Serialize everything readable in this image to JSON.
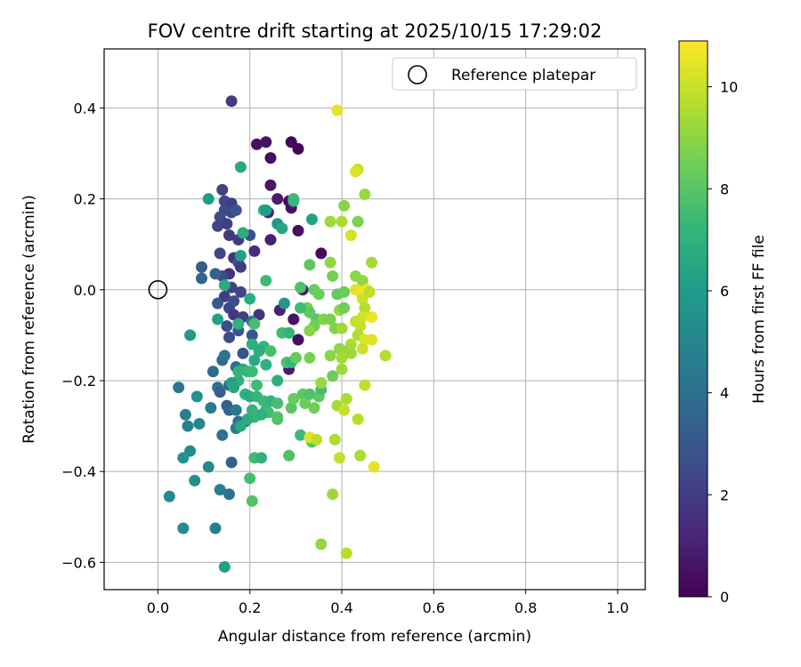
{
  "chart_data": {
    "type": "scatter",
    "title": "FOV centre drift starting at 2025/10/15 17:29:02",
    "xlabel": "Angular distance from reference (arcmin)",
    "ylabel": "Rotation from reference (arcmin)",
    "xlim": [
      -0.117,
      1.06
    ],
    "ylim": [
      -0.66,
      0.53
    ],
    "xticks": [
      0.0,
      0.2,
      0.4,
      0.6,
      0.8,
      1.0
    ],
    "xtick_labels": [
      "0.0",
      "0.2",
      "0.4",
      "0.6",
      "0.8",
      "1.0"
    ],
    "yticks": [
      -0.6,
      -0.4,
      -0.2,
      0.0,
      0.2,
      0.4
    ],
    "ytick_labels": [
      "−0.6",
      "−0.4",
      "−0.2",
      "0.0",
      "0.2",
      "0.4"
    ],
    "grid": true,
    "legend": {
      "position": "top-right",
      "label": "Reference platepar"
    },
    "reference_point": {
      "x": 0.0,
      "y": 0.0
    },
    "colorbar": {
      "label": "Hours from first FF file",
      "range": [
        0,
        10.9
      ],
      "ticks": [
        0,
        2,
        4,
        6,
        8,
        10
      ],
      "tick_labels": [
        "0",
        "2",
        "4",
        "6",
        "8",
        "10"
      ],
      "colormap": "viridis",
      "stops": [
        "#440154",
        "#482878",
        "#3e4989",
        "#31688e",
        "#26828e",
        "#1f9e89",
        "#35b779",
        "#6ece58",
        "#b5de2b",
        "#fde725"
      ]
    },
    "points": [
      {
        "x": 0.29,
        "y": 0.325,
        "h": 0.2
      },
      {
        "x": 0.305,
        "y": 0.31,
        "h": 0.1
      },
      {
        "x": 0.215,
        "y": 0.32,
        "h": 0.5
      },
      {
        "x": 0.235,
        "y": 0.325,
        "h": 0.6
      },
      {
        "x": 0.245,
        "y": 0.29,
        "h": 0.4
      },
      {
        "x": 0.245,
        "y": 0.23,
        "h": 0.7
      },
      {
        "x": 0.26,
        "y": 0.2,
        "h": 0.9
      },
      {
        "x": 0.285,
        "y": 0.195,
        "h": 0.3
      },
      {
        "x": 0.29,
        "y": 0.18,
        "h": 0.5
      },
      {
        "x": 0.24,
        "y": 0.17,
        "h": 1.2
      },
      {
        "x": 0.305,
        "y": 0.13,
        "h": 0.4
      },
      {
        "x": 0.245,
        "y": 0.11,
        "h": 1.0
      },
      {
        "x": 0.355,
        "y": 0.08,
        "h": 0.3
      },
      {
        "x": 0.21,
        "y": 0.085,
        "h": 1.5
      },
      {
        "x": 0.315,
        "y": 0.0,
        "h": 0.8
      },
      {
        "x": 0.295,
        "y": -0.065,
        "h": 0.6
      },
      {
        "x": 0.305,
        "y": -0.11,
        "h": 0.5
      },
      {
        "x": 0.285,
        "y": -0.175,
        "h": 0.9
      },
      {
        "x": 0.265,
        "y": -0.045,
        "h": 1.1
      },
      {
        "x": 0.22,
        "y": -0.055,
        "h": 1.6
      },
      {
        "x": 0.16,
        "y": 0.415,
        "h": 1.9
      },
      {
        "x": 0.14,
        "y": 0.22,
        "h": 2.2
      },
      {
        "x": 0.145,
        "y": 0.195,
        "h": 2.3
      },
      {
        "x": 0.16,
        "y": 0.19,
        "h": 2.0
      },
      {
        "x": 0.145,
        "y": 0.175,
        "h": 2.5
      },
      {
        "x": 0.16,
        "y": 0.17,
        "h": 2.4
      },
      {
        "x": 0.135,
        "y": 0.16,
        "h": 2.6
      },
      {
        "x": 0.13,
        "y": 0.14,
        "h": 2.3
      },
      {
        "x": 0.15,
        "y": 0.145,
        "h": 2.1
      },
      {
        "x": 0.155,
        "y": 0.12,
        "h": 1.8
      },
      {
        "x": 0.175,
        "y": 0.11,
        "h": 2.0
      },
      {
        "x": 0.2,
        "y": 0.12,
        "h": 2.7
      },
      {
        "x": 0.135,
        "y": 0.08,
        "h": 2.2
      },
      {
        "x": 0.165,
        "y": 0.07,
        "h": 1.7
      },
      {
        "x": 0.175,
        "y": 0.06,
        "h": 2.8
      },
      {
        "x": 0.18,
        "y": 0.05,
        "h": 1.9
      },
      {
        "x": 0.155,
        "y": 0.035,
        "h": 1.6
      },
      {
        "x": 0.14,
        "y": 0.03,
        "h": 2.5
      },
      {
        "x": 0.16,
        "y": 0.005,
        "h": 2.2
      },
      {
        "x": 0.18,
        "y": -0.005,
        "h": 2.3
      },
      {
        "x": 0.145,
        "y": -0.015,
        "h": 2.0
      },
      {
        "x": 0.165,
        "y": -0.025,
        "h": 2.6
      },
      {
        "x": 0.13,
        "y": -0.03,
        "h": 3.1
      },
      {
        "x": 0.155,
        "y": -0.04,
        "h": 2.4
      },
      {
        "x": 0.165,
        "y": -0.055,
        "h": 1.8
      },
      {
        "x": 0.185,
        "y": -0.06,
        "h": 2.1
      },
      {
        "x": 0.15,
        "y": -0.08,
        "h": 2.7
      },
      {
        "x": 0.175,
        "y": -0.09,
        "h": 2.9
      },
      {
        "x": 0.155,
        "y": -0.105,
        "h": 2.5
      },
      {
        "x": 0.205,
        "y": -0.1,
        "h": 3.0
      },
      {
        "x": 0.185,
        "y": -0.14,
        "h": 2.8
      },
      {
        "x": 0.095,
        "y": 0.05,
        "h": 3.2
      },
      {
        "x": 0.125,
        "y": 0.035,
        "h": 3.4
      },
      {
        "x": 0.11,
        "y": 0.2,
        "h": 6.0
      },
      {
        "x": 0.17,
        "y": 0.175,
        "h": 2.9
      },
      {
        "x": 0.18,
        "y": 0.27,
        "h": 6.5
      },
      {
        "x": 0.095,
        "y": 0.025,
        "h": 3.5
      },
      {
        "x": 0.145,
        "y": 0.01,
        "h": 6.6
      },
      {
        "x": 0.13,
        "y": -0.065,
        "h": 6.3
      },
      {
        "x": 0.07,
        "y": -0.1,
        "h": 5.9
      },
      {
        "x": 0.2,
        "y": -0.02,
        "h": 6.7
      },
      {
        "x": 0.205,
        "y": -0.07,
        "h": 4.0
      },
      {
        "x": 0.175,
        "y": -0.075,
        "h": 7.0
      },
      {
        "x": 0.18,
        "y": 0.075,
        "h": 6.2
      },
      {
        "x": 0.185,
        "y": 0.125,
        "h": 6.8
      },
      {
        "x": 0.12,
        "y": -0.18,
        "h": 3.8
      },
      {
        "x": 0.14,
        "y": -0.155,
        "h": 3.7
      },
      {
        "x": 0.145,
        "y": -0.145,
        "h": 4.1
      },
      {
        "x": 0.17,
        "y": -0.17,
        "h": 3.9
      },
      {
        "x": 0.155,
        "y": -0.21,
        "h": 3.6
      },
      {
        "x": 0.13,
        "y": -0.215,
        "h": 4.2
      },
      {
        "x": 0.135,
        "y": -0.225,
        "h": 3.3
      },
      {
        "x": 0.045,
        "y": -0.215,
        "h": 4.3
      },
      {
        "x": 0.085,
        "y": -0.235,
        "h": 5.5
      },
      {
        "x": 0.115,
        "y": -0.26,
        "h": 4.6
      },
      {
        "x": 0.15,
        "y": -0.255,
        "h": 3.2
      },
      {
        "x": 0.155,
        "y": -0.265,
        "h": 3.5
      },
      {
        "x": 0.17,
        "y": -0.265,
        "h": 4.4
      },
      {
        "x": 0.06,
        "y": -0.275,
        "h": 4.7
      },
      {
        "x": 0.065,
        "y": -0.3,
        "h": 4.8
      },
      {
        "x": 0.09,
        "y": -0.295,
        "h": 5.0
      },
      {
        "x": 0.175,
        "y": -0.29,
        "h": 4.0
      },
      {
        "x": 0.19,
        "y": -0.29,
        "h": 3.9
      },
      {
        "x": 0.14,
        "y": -0.32,
        "h": 4.1
      },
      {
        "x": 0.17,
        "y": -0.305,
        "h": 4.5
      },
      {
        "x": 0.07,
        "y": -0.355,
        "h": 5.3
      },
      {
        "x": 0.055,
        "y": -0.37,
        "h": 5.6
      },
      {
        "x": 0.11,
        "y": -0.39,
        "h": 5.2
      },
      {
        "x": 0.16,
        "y": -0.38,
        "h": 3.4
      },
      {
        "x": 0.08,
        "y": -0.42,
        "h": 5.4
      },
      {
        "x": 0.135,
        "y": -0.44,
        "h": 4.6
      },
      {
        "x": 0.155,
        "y": -0.45,
        "h": 4.2
      },
      {
        "x": 0.025,
        "y": -0.455,
        "h": 5.1
      },
      {
        "x": 0.055,
        "y": -0.525,
        "h": 5.4
      },
      {
        "x": 0.125,
        "y": -0.525,
        "h": 4.7
      },
      {
        "x": 0.145,
        "y": -0.61,
        "h": 6.1
      },
      {
        "x": 0.23,
        "y": 0.175,
        "h": 7.2
      },
      {
        "x": 0.235,
        "y": 0.175,
        "h": 6.1
      },
      {
        "x": 0.26,
        "y": 0.145,
        "h": 5.7
      },
      {
        "x": 0.27,
        "y": 0.135,
        "h": 6.4
      },
      {
        "x": 0.295,
        "y": 0.195,
        "h": 7.0
      },
      {
        "x": 0.335,
        "y": 0.155,
        "h": 6.3
      },
      {
        "x": 0.295,
        "y": 0.2,
        "h": 7.3
      },
      {
        "x": 0.235,
        "y": 0.02,
        "h": 7.4
      },
      {
        "x": 0.275,
        "y": -0.03,
        "h": 5.8
      },
      {
        "x": 0.27,
        "y": -0.095,
        "h": 7.5
      },
      {
        "x": 0.285,
        "y": -0.095,
        "h": 7.1
      },
      {
        "x": 0.21,
        "y": -0.075,
        "h": 7.6
      },
      {
        "x": 0.205,
        "y": -0.12,
        "h": 6.9
      },
      {
        "x": 0.23,
        "y": -0.125,
        "h": 7.2
      },
      {
        "x": 0.22,
        "y": -0.135,
        "h": 6.8
      },
      {
        "x": 0.245,
        "y": -0.135,
        "h": 7.7
      },
      {
        "x": 0.21,
        "y": -0.155,
        "h": 6.6
      },
      {
        "x": 0.235,
        "y": -0.165,
        "h": 7.0
      },
      {
        "x": 0.205,
        "y": -0.18,
        "h": 7.4
      },
      {
        "x": 0.185,
        "y": -0.175,
        "h": 6.5
      },
      {
        "x": 0.195,
        "y": -0.18,
        "h": 7.3
      },
      {
        "x": 0.175,
        "y": -0.18,
        "h": 7.1
      },
      {
        "x": 0.175,
        "y": -0.2,
        "h": 7.0
      },
      {
        "x": 0.16,
        "y": -0.205,
        "h": 6.2
      },
      {
        "x": 0.165,
        "y": -0.215,
        "h": 6.4
      },
      {
        "x": 0.215,
        "y": -0.21,
        "h": 7.5
      },
      {
        "x": 0.26,
        "y": -0.2,
        "h": 6.9
      },
      {
        "x": 0.28,
        "y": -0.16,
        "h": 7.8
      },
      {
        "x": 0.29,
        "y": -0.16,
        "h": 7.3
      },
      {
        "x": 0.3,
        "y": -0.15,
        "h": 8.2
      },
      {
        "x": 0.19,
        "y": -0.23,
        "h": 7.0
      },
      {
        "x": 0.2,
        "y": -0.235,
        "h": 6.7
      },
      {
        "x": 0.215,
        "y": -0.235,
        "h": 7.2
      },
      {
        "x": 0.23,
        "y": -0.245,
        "h": 7.4
      },
      {
        "x": 0.245,
        "y": -0.245,
        "h": 7.0
      },
      {
        "x": 0.26,
        "y": -0.25,
        "h": 7.6
      },
      {
        "x": 0.235,
        "y": -0.265,
        "h": 7.3
      },
      {
        "x": 0.24,
        "y": -0.27,
        "h": 7.5
      },
      {
        "x": 0.205,
        "y": -0.265,
        "h": 7.1
      },
      {
        "x": 0.21,
        "y": -0.28,
        "h": 7.2
      },
      {
        "x": 0.225,
        "y": -0.275,
        "h": 7.0
      },
      {
        "x": 0.195,
        "y": -0.285,
        "h": 6.8
      },
      {
        "x": 0.18,
        "y": -0.3,
        "h": 6.6
      },
      {
        "x": 0.26,
        "y": -0.285,
        "h": 7.7
      },
      {
        "x": 0.26,
        "y": -0.28,
        "h": 7.9
      },
      {
        "x": 0.29,
        "y": -0.26,
        "h": 8.0
      },
      {
        "x": 0.295,
        "y": -0.24,
        "h": 8.3
      },
      {
        "x": 0.315,
        "y": -0.23,
        "h": 8.1
      },
      {
        "x": 0.32,
        "y": -0.25,
        "h": 8.4
      },
      {
        "x": 0.33,
        "y": -0.23,
        "h": 7.8
      },
      {
        "x": 0.35,
        "y": -0.235,
        "h": 8.2
      },
      {
        "x": 0.355,
        "y": -0.22,
        "h": 7.6
      },
      {
        "x": 0.34,
        "y": -0.26,
        "h": 8.5
      },
      {
        "x": 0.335,
        "y": -0.335,
        "h": 7.9
      },
      {
        "x": 0.31,
        "y": -0.32,
        "h": 7.4
      },
      {
        "x": 0.21,
        "y": -0.37,
        "h": 7.5
      },
      {
        "x": 0.225,
        "y": -0.37,
        "h": 7.0
      },
      {
        "x": 0.285,
        "y": -0.365,
        "h": 7.8
      },
      {
        "x": 0.2,
        "y": -0.415,
        "h": 7.6
      },
      {
        "x": 0.205,
        "y": -0.465,
        "h": 7.9
      },
      {
        "x": 0.33,
        "y": 0.055,
        "h": 8.1
      },
      {
        "x": 0.31,
        "y": 0.005,
        "h": 7.8
      },
      {
        "x": 0.34,
        "y": 0.0,
        "h": 8.3
      },
      {
        "x": 0.35,
        "y": -0.01,
        "h": 8.4
      },
      {
        "x": 0.325,
        "y": -0.04,
        "h": 8.6
      },
      {
        "x": 0.33,
        "y": -0.05,
        "h": 8.2
      },
      {
        "x": 0.345,
        "y": -0.065,
        "h": 8.0
      },
      {
        "x": 0.34,
        "y": -0.08,
        "h": 8.5
      },
      {
        "x": 0.36,
        "y": -0.065,
        "h": 8.8
      },
      {
        "x": 0.375,
        "y": -0.065,
        "h": 8.7
      },
      {
        "x": 0.31,
        "y": -0.04,
        "h": 7.5
      },
      {
        "x": 0.33,
        "y": -0.09,
        "h": 8.9
      },
      {
        "x": 0.3,
        "y": -0.15,
        "h": 8.3
      },
      {
        "x": 0.33,
        "y": -0.15,
        "h": 8.6
      },
      {
        "x": 0.355,
        "y": -0.205,
        "h": 9.2
      },
      {
        "x": 0.38,
        "y": -0.19,
        "h": 8.4
      },
      {
        "x": 0.375,
        "y": -0.145,
        "h": 8.9
      },
      {
        "x": 0.395,
        "y": -0.13,
        "h": 9.0
      },
      {
        "x": 0.385,
        "y": -0.085,
        "h": 8.8
      },
      {
        "x": 0.4,
        "y": -0.085,
        "h": 9.3
      },
      {
        "x": 0.395,
        "y": -0.045,
        "h": 9.1
      },
      {
        "x": 0.405,
        "y": -0.04,
        "h": 8.5
      },
      {
        "x": 0.39,
        "y": -0.01,
        "h": 8.2
      },
      {
        "x": 0.405,
        "y": -0.005,
        "h": 8.4
      },
      {
        "x": 0.38,
        "y": 0.03,
        "h": 8.6
      },
      {
        "x": 0.375,
        "y": 0.06,
        "h": 9.1
      },
      {
        "x": 0.375,
        "y": 0.15,
        "h": 9.3
      },
      {
        "x": 0.4,
        "y": 0.15,
        "h": 9.5
      },
      {
        "x": 0.405,
        "y": 0.185,
        "h": 8.9
      },
      {
        "x": 0.435,
        "y": 0.15,
        "h": 8.7
      },
      {
        "x": 0.45,
        "y": 0.21,
        "h": 9.2
      },
      {
        "x": 0.43,
        "y": 0.03,
        "h": 9.0
      },
      {
        "x": 0.445,
        "y": 0.02,
        "h": 9.1
      },
      {
        "x": 0.465,
        "y": 0.06,
        "h": 9.4
      },
      {
        "x": 0.42,
        "y": 0.12,
        "h": 10.2
      },
      {
        "x": 0.435,
        "y": 0.265,
        "h": 10.0
      },
      {
        "x": 0.43,
        "y": 0.26,
        "h": 10.3
      },
      {
        "x": 0.39,
        "y": 0.395,
        "h": 10.5
      },
      {
        "x": 0.43,
        "y": 0.0,
        "h": 10.4
      },
      {
        "x": 0.44,
        "y": -0.005,
        "h": 10.6
      },
      {
        "x": 0.455,
        "y": 0.0,
        "h": 10.7
      },
      {
        "x": 0.46,
        "y": -0.005,
        "h": 9.8
      },
      {
        "x": 0.445,
        "y": -0.02,
        "h": 10.1
      },
      {
        "x": 0.45,
        "y": -0.04,
        "h": 9.7
      },
      {
        "x": 0.445,
        "y": -0.06,
        "h": 10.2
      },
      {
        "x": 0.465,
        "y": -0.06,
        "h": 10.6
      },
      {
        "x": 0.43,
        "y": -0.07,
        "h": 9.9
      },
      {
        "x": 0.44,
        "y": -0.08,
        "h": 10.0
      },
      {
        "x": 0.435,
        "y": -0.1,
        "h": 9.6
      },
      {
        "x": 0.45,
        "y": -0.11,
        "h": 10.3
      },
      {
        "x": 0.465,
        "y": -0.11,
        "h": 10.4
      },
      {
        "x": 0.445,
        "y": -0.13,
        "h": 10.1
      },
      {
        "x": 0.42,
        "y": -0.12,
        "h": 9.5
      },
      {
        "x": 0.42,
        "y": -0.14,
        "h": 9.3
      },
      {
        "x": 0.405,
        "y": -0.135,
        "h": 9.2
      },
      {
        "x": 0.4,
        "y": -0.15,
        "h": 9.4
      },
      {
        "x": 0.495,
        "y": -0.145,
        "h": 9.6
      },
      {
        "x": 0.45,
        "y": -0.21,
        "h": 9.8
      },
      {
        "x": 0.4,
        "y": -0.175,
        "h": 9.3
      },
      {
        "x": 0.41,
        "y": -0.24,
        "h": 9.5
      },
      {
        "x": 0.39,
        "y": -0.255,
        "h": 9.4
      },
      {
        "x": 0.405,
        "y": -0.265,
        "h": 10.0
      },
      {
        "x": 0.435,
        "y": -0.285,
        "h": 9.7
      },
      {
        "x": 0.385,
        "y": -0.33,
        "h": 9.6
      },
      {
        "x": 0.33,
        "y": -0.325,
        "h": 10.4
      },
      {
        "x": 0.345,
        "y": -0.33,
        "h": 9.8
      },
      {
        "x": 0.395,
        "y": -0.37,
        "h": 9.9
      },
      {
        "x": 0.44,
        "y": -0.365,
        "h": 9.5
      },
      {
        "x": 0.47,
        "y": -0.39,
        "h": 10.5
      },
      {
        "x": 0.38,
        "y": -0.45,
        "h": 9.3
      },
      {
        "x": 0.355,
        "y": -0.56,
        "h": 9.1
      },
      {
        "x": 0.41,
        "y": -0.58,
        "h": 9.7
      }
    ]
  }
}
